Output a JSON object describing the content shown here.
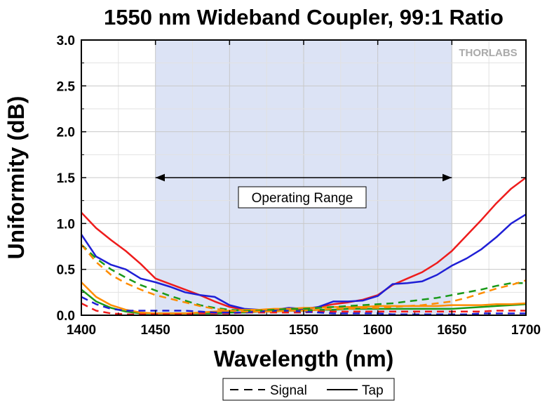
{
  "chart_data": {
    "type": "line",
    "title": "1550 nm Wideband Coupler, 99:1 Ratio",
    "xlabel": "Wavelength (nm)",
    "ylabel": "Uniformity (dB)",
    "xlim": [
      1400,
      1700
    ],
    "ylim": [
      0,
      3.0
    ],
    "xticks": [
      "1400",
      "1450",
      "1500",
      "1550",
      "1600",
      "1650",
      "1700"
    ],
    "yticks": [
      "0.0",
      "0.5",
      "1.0",
      "1.5",
      "2.0",
      "2.5",
      "3.0"
    ],
    "grid": true,
    "logo": "THORLABS",
    "operating_range": {
      "label": "Operating Range",
      "x": [
        1450,
        1650
      ],
      "y": 1.5
    },
    "legend": {
      "placement": "bottom-center",
      "entries": [
        {
          "label": "Signal",
          "style": "dashed"
        },
        {
          "label": "Tap",
          "style": "solid"
        }
      ]
    },
    "series": [
      {
        "type": "Tap",
        "color": "#ee1c1c",
        "style": "solid",
        "x": [
          1400,
          1410,
          1420,
          1430,
          1440,
          1450,
          1460,
          1470,
          1480,
          1490,
          1500,
          1510,
          1520,
          1530,
          1540,
          1550,
          1560,
          1570,
          1580,
          1590,
          1600,
          1610,
          1620,
          1630,
          1640,
          1650,
          1660,
          1670,
          1680,
          1690,
          1700
        ],
        "y": [
          1.12,
          0.95,
          0.82,
          0.7,
          0.56,
          0.4,
          0.34,
          0.28,
          0.22,
          0.15,
          0.09,
          0.06,
          0.05,
          0.05,
          0.05,
          0.06,
          0.09,
          0.12,
          0.14,
          0.17,
          0.22,
          0.33,
          0.4,
          0.47,
          0.57,
          0.7,
          0.87,
          1.04,
          1.22,
          1.38,
          1.5
        ]
      },
      {
        "type": "Tap",
        "color": "#1f1fd6",
        "style": "solid",
        "x": [
          1400,
          1410,
          1420,
          1430,
          1440,
          1450,
          1460,
          1470,
          1480,
          1490,
          1500,
          1510,
          1520,
          1530,
          1540,
          1550,
          1560,
          1570,
          1580,
          1590,
          1600,
          1610,
          1620,
          1630,
          1640,
          1650,
          1660,
          1670,
          1680,
          1690,
          1700
        ],
        "y": [
          0.88,
          0.64,
          0.55,
          0.5,
          0.4,
          0.36,
          0.31,
          0.25,
          0.22,
          0.2,
          0.11,
          0.07,
          0.06,
          0.06,
          0.08,
          0.07,
          0.09,
          0.15,
          0.15,
          0.16,
          0.21,
          0.34,
          0.35,
          0.37,
          0.44,
          0.54,
          0.62,
          0.72,
          0.85,
          1.0,
          1.1
        ]
      },
      {
        "type": "Tap",
        "color": "#1a9a1a",
        "style": "solid",
        "x": [
          1400,
          1410,
          1420,
          1430,
          1440,
          1450,
          1460,
          1470,
          1480,
          1490,
          1500,
          1510,
          1520,
          1530,
          1540,
          1550,
          1560,
          1570,
          1580,
          1590,
          1600,
          1610,
          1620,
          1630,
          1640,
          1650,
          1660,
          1670,
          1680,
          1690,
          1700
        ],
        "y": [
          0.28,
          0.15,
          0.08,
          0.04,
          0.02,
          0.02,
          0.02,
          0.02,
          0.02,
          0.02,
          0.03,
          0.03,
          0.04,
          0.04,
          0.05,
          0.05,
          0.06,
          0.06,
          0.07,
          0.07,
          0.07,
          0.07,
          0.07,
          0.07,
          0.07,
          0.07,
          0.08,
          0.09,
          0.1,
          0.11,
          0.12
        ]
      },
      {
        "type": "Tap",
        "color": "#ff8c00",
        "style": "solid",
        "x": [
          1400,
          1410,
          1420,
          1430,
          1440,
          1450,
          1460,
          1470,
          1480,
          1490,
          1500,
          1510,
          1520,
          1530,
          1540,
          1550,
          1560,
          1570,
          1580,
          1590,
          1600,
          1610,
          1620,
          1630,
          1640,
          1650,
          1660,
          1670,
          1680,
          1690,
          1700
        ],
        "y": [
          0.36,
          0.2,
          0.11,
          0.06,
          0.03,
          0.02,
          0.02,
          0.02,
          0.03,
          0.04,
          0.05,
          0.06,
          0.06,
          0.07,
          0.07,
          0.08,
          0.08,
          0.09,
          0.09,
          0.09,
          0.1,
          0.1,
          0.1,
          0.1,
          0.1,
          0.11,
          0.11,
          0.11,
          0.12,
          0.12,
          0.13
        ]
      },
      {
        "type": "Signal",
        "color": "#ee1c1c",
        "style": "dashed",
        "x": [
          1400,
          1410,
          1420,
          1430,
          1440,
          1450,
          1460,
          1470,
          1480,
          1490,
          1500,
          1510,
          1520,
          1530,
          1540,
          1550,
          1560,
          1570,
          1580,
          1590,
          1600,
          1610,
          1620,
          1630,
          1640,
          1650,
          1660,
          1670,
          1680,
          1690,
          1700
        ],
        "y": [
          0.13,
          0.05,
          0.02,
          0.01,
          0.01,
          0.01,
          0.01,
          0.01,
          0.02,
          0.02,
          0.02,
          0.03,
          0.03,
          0.03,
          0.03,
          0.03,
          0.04,
          0.04,
          0.04,
          0.04,
          0.04,
          0.04,
          0.04,
          0.04,
          0.04,
          0.04,
          0.04,
          0.04,
          0.05,
          0.05,
          0.05
        ]
      },
      {
        "type": "Signal",
        "color": "#1f1fd6",
        "style": "dashed",
        "x": [
          1400,
          1410,
          1420,
          1430,
          1440,
          1450,
          1460,
          1470,
          1480,
          1490,
          1500,
          1510,
          1520,
          1530,
          1540,
          1550,
          1560,
          1570,
          1580,
          1590,
          1600,
          1610,
          1620,
          1630,
          1640,
          1650,
          1660,
          1670,
          1680,
          1690,
          1700
        ],
        "y": [
          0.2,
          0.12,
          0.07,
          0.05,
          0.05,
          0.05,
          0.05,
          0.05,
          0.04,
          0.03,
          0.03,
          0.03,
          0.04,
          0.05,
          0.05,
          0.04,
          0.03,
          0.02,
          0.02,
          0.02,
          0.02,
          0.01,
          0.01,
          0.01,
          0.01,
          0.01,
          0.01,
          0.02,
          0.02,
          0.02,
          0.02
        ]
      },
      {
        "type": "Signal",
        "color": "#1a9a1a",
        "style": "dashed",
        "x": [
          1400,
          1410,
          1420,
          1430,
          1440,
          1450,
          1460,
          1470,
          1480,
          1490,
          1500,
          1510,
          1520,
          1530,
          1540,
          1550,
          1560,
          1570,
          1580,
          1590,
          1600,
          1610,
          1620,
          1630,
          1640,
          1650,
          1660,
          1670,
          1680,
          1690,
          1700
        ],
        "y": [
          0.77,
          0.62,
          0.5,
          0.41,
          0.33,
          0.27,
          0.21,
          0.16,
          0.11,
          0.08,
          0.06,
          0.05,
          0.05,
          0.06,
          0.07,
          0.07,
          0.08,
          0.09,
          0.1,
          0.11,
          0.12,
          0.13,
          0.15,
          0.17,
          0.19,
          0.22,
          0.25,
          0.28,
          0.32,
          0.35,
          0.35
        ]
      },
      {
        "type": "Signal",
        "color": "#ff8c00",
        "style": "dashed",
        "x": [
          1400,
          1410,
          1420,
          1430,
          1440,
          1450,
          1460,
          1470,
          1480,
          1490,
          1500,
          1510,
          1520,
          1530,
          1540,
          1550,
          1560,
          1570,
          1580,
          1590,
          1600,
          1610,
          1620,
          1630,
          1640,
          1650,
          1660,
          1670,
          1680,
          1690,
          1700
        ],
        "y": [
          0.77,
          0.58,
          0.44,
          0.35,
          0.28,
          0.22,
          0.18,
          0.14,
          0.1,
          0.07,
          0.05,
          0.04,
          0.04,
          0.04,
          0.05,
          0.05,
          0.06,
          0.07,
          0.07,
          0.08,
          0.08,
          0.09,
          0.1,
          0.11,
          0.13,
          0.15,
          0.19,
          0.24,
          0.29,
          0.33,
          0.38
        ]
      }
    ]
  }
}
